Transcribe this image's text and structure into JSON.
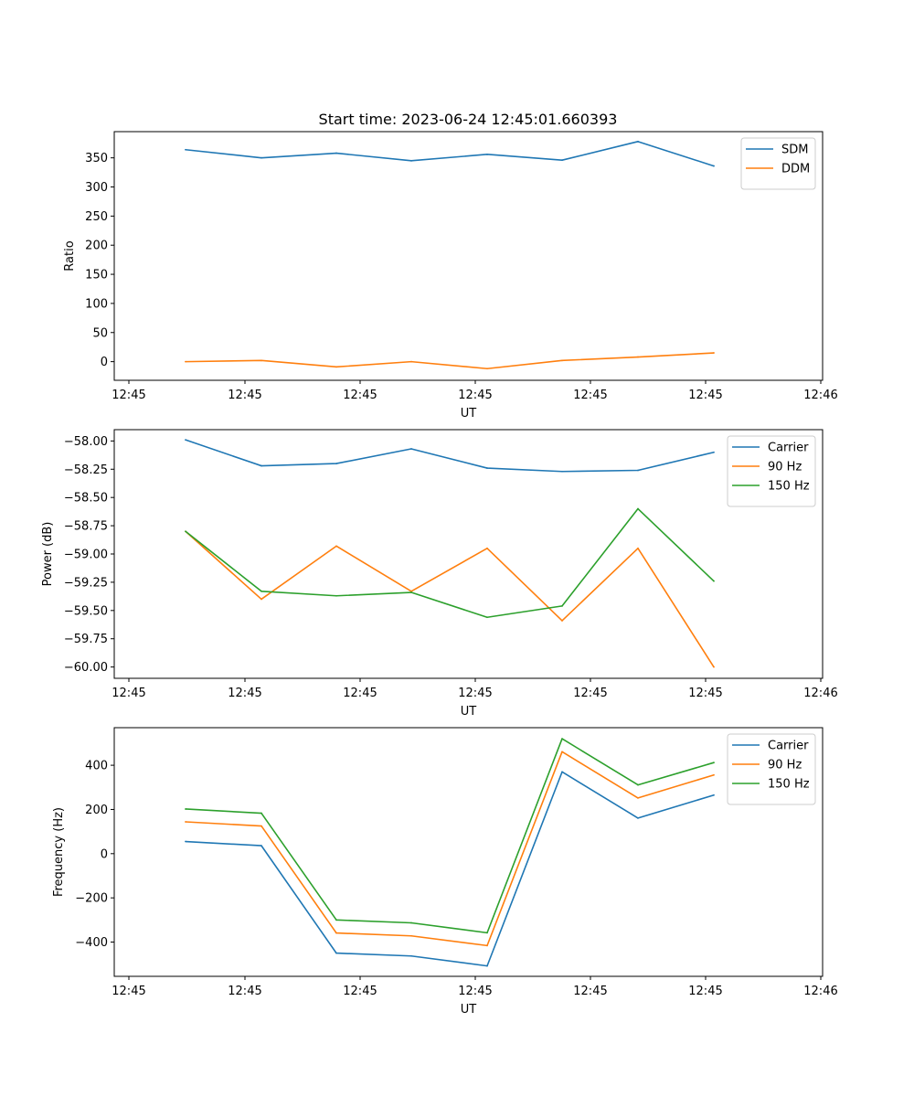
{
  "figure_title": "Start time: 2023-06-24 12:45:01.660393",
  "colors": {
    "blue": "#1f77b4",
    "orange": "#ff7f0e",
    "green": "#2ca02c"
  },
  "chart_data": [
    {
      "type": "line",
      "xlabel": "UT",
      "ylabel": "Ratio",
      "xtick_labels": [
        "12:45",
        "12:45",
        "12:45",
        "12:45",
        "12:45",
        "12:45",
        "12:46"
      ],
      "ylim": [
        -32,
        395
      ],
      "yticks": [
        0,
        50,
        100,
        150,
        200,
        250,
        300,
        350
      ],
      "ytick_labels": [
        "0",
        "50",
        "100",
        "150",
        "200",
        "250",
        "300",
        "350"
      ],
      "grid": false,
      "legend_position": "top-right",
      "series": [
        {
          "name": "SDM",
          "color": "#1f77b4",
          "values": [
            364,
            350,
            358,
            345,
            356,
            346,
            378,
            336
          ]
        },
        {
          "name": "DDM",
          "color": "#ff7f0e",
          "values": [
            0,
            2,
            -9,
            0,
            -12,
            2,
            8,
            15
          ]
        }
      ]
    },
    {
      "type": "line",
      "xlabel": "UT",
      "ylabel": "Power (dB)",
      "xtick_labels": [
        "12:45",
        "12:45",
        "12:45",
        "12:45",
        "12:45",
        "12:45",
        "12:46"
      ],
      "ylim": [
        -60.1,
        -57.9
      ],
      "yticks": [
        -58.0,
        -58.25,
        -58.5,
        -58.75,
        -59.0,
        -59.25,
        -59.5,
        -59.75,
        -60.0
      ],
      "ytick_labels": [
        "−58.00",
        "−58.25",
        "−58.50",
        "−58.75",
        "−59.00",
        "−59.25",
        "−59.50",
        "−59.75",
        "−60.00"
      ],
      "grid": false,
      "legend_position": "top-right",
      "series": [
        {
          "name": "Carrier",
          "color": "#1f77b4",
          "values": [
            -57.99,
            -58.22,
            -58.2,
            -58.07,
            -58.24,
            -58.27,
            -58.26,
            -58.1
          ]
        },
        {
          "name": "90 Hz",
          "color": "#ff7f0e",
          "values": [
            -58.8,
            -59.4,
            -58.93,
            -59.33,
            -58.95,
            -59.59,
            -58.95,
            -60.0
          ]
        },
        {
          "name": "150 Hz",
          "color": "#2ca02c",
          "values": [
            -58.8,
            -59.33,
            -59.37,
            -59.34,
            -59.56,
            -59.46,
            -58.6,
            -59.24
          ]
        }
      ]
    },
    {
      "type": "line",
      "xlabel": "UT",
      "ylabel": "Frequency (Hz)",
      "xtick_labels": [
        "12:45",
        "12:45",
        "12:45",
        "12:45",
        "12:45",
        "12:45",
        "12:46"
      ],
      "ylim": [
        -555,
        570
      ],
      "yticks": [
        -400,
        -200,
        0,
        200,
        400
      ],
      "ytick_labels": [
        "−400",
        "−200",
        "0",
        "200",
        "400"
      ],
      "grid": false,
      "legend_position": "top-right",
      "series": [
        {
          "name": "Carrier",
          "color": "#1f77b4",
          "values": [
            55,
            36,
            -450,
            -463,
            -508,
            370,
            161,
            265
          ]
        },
        {
          "name": "90 Hz",
          "color": "#ff7f0e",
          "values": [
            144,
            125,
            -359,
            -372,
            -416,
            461,
            252,
            356
          ]
        },
        {
          "name": "150 Hz",
          "color": "#2ca02c",
          "values": [
            202,
            183,
            -300,
            -313,
            -358,
            520,
            311,
            412
          ]
        }
      ]
    }
  ]
}
